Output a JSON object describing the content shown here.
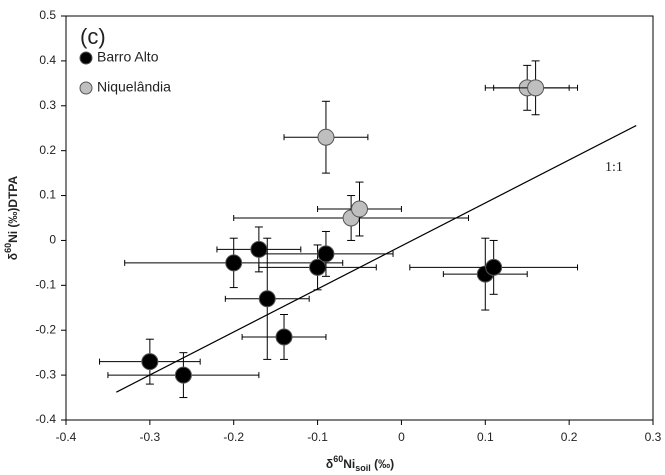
{
  "chart_data": {
    "type": "scatter",
    "panel_label": "(c)",
    "x_label": {
      "prefix": "δ",
      "sup": "60",
      "main": "Ni",
      "sub": "soil",
      "suffix": " (‰)"
    },
    "y_label": {
      "prefix": "δ",
      "sup": "60",
      "main": "Ni (‰)DTPA"
    },
    "xlim": [
      -0.4,
      0.3
    ],
    "xticks": [
      -0.4,
      -0.3,
      -0.2,
      -0.1,
      0,
      0.1,
      0.2,
      0.3
    ],
    "ylim": [
      -0.4,
      0.5
    ],
    "yticks": [
      -0.4,
      -0.3,
      -0.2,
      -0.1,
      0,
      0.1,
      0.2,
      0.3,
      0.4,
      0.5
    ],
    "reference_line": {
      "label": "1:1",
      "x": [
        -0.34,
        0.28
      ],
      "y": [
        -0.338,
        0.256
      ]
    },
    "series": [
      {
        "name": "Barro Alto",
        "color": "#000000",
        "x": [
          -0.3,
          -0.26,
          -0.2,
          -0.17,
          -0.16,
          -0.14,
          -0.1,
          -0.09,
          0.1,
          0.11
        ],
        "y": [
          -0.27,
          -0.3,
          -0.05,
          -0.02,
          -0.13,
          -0.215,
          -0.06,
          -0.03,
          -0.075,
          -0.06
        ],
        "xerr": [
          0.06,
          0.09,
          0.13,
          0.05,
          0.05,
          0.05,
          0.07,
          0.08,
          0.05,
          0.1
        ],
        "yerr": [
          0.05,
          0.05,
          0.055,
          0.05,
          0.135,
          0.05,
          0.05,
          0.05,
          0.08,
          0.06
        ]
      },
      {
        "name": "Niquelândia",
        "color": "#bfbfbf",
        "x": [
          -0.09,
          -0.06,
          -0.05,
          0.15,
          0.16
        ],
        "y": [
          0.23,
          0.05,
          0.07,
          0.34,
          0.34
        ],
        "xerr": [
          0.05,
          0.14,
          0.05,
          0.05,
          0.05
        ],
        "yerr": [
          0.08,
          0.05,
          0.06,
          0.05,
          0.06
        ]
      }
    ]
  }
}
